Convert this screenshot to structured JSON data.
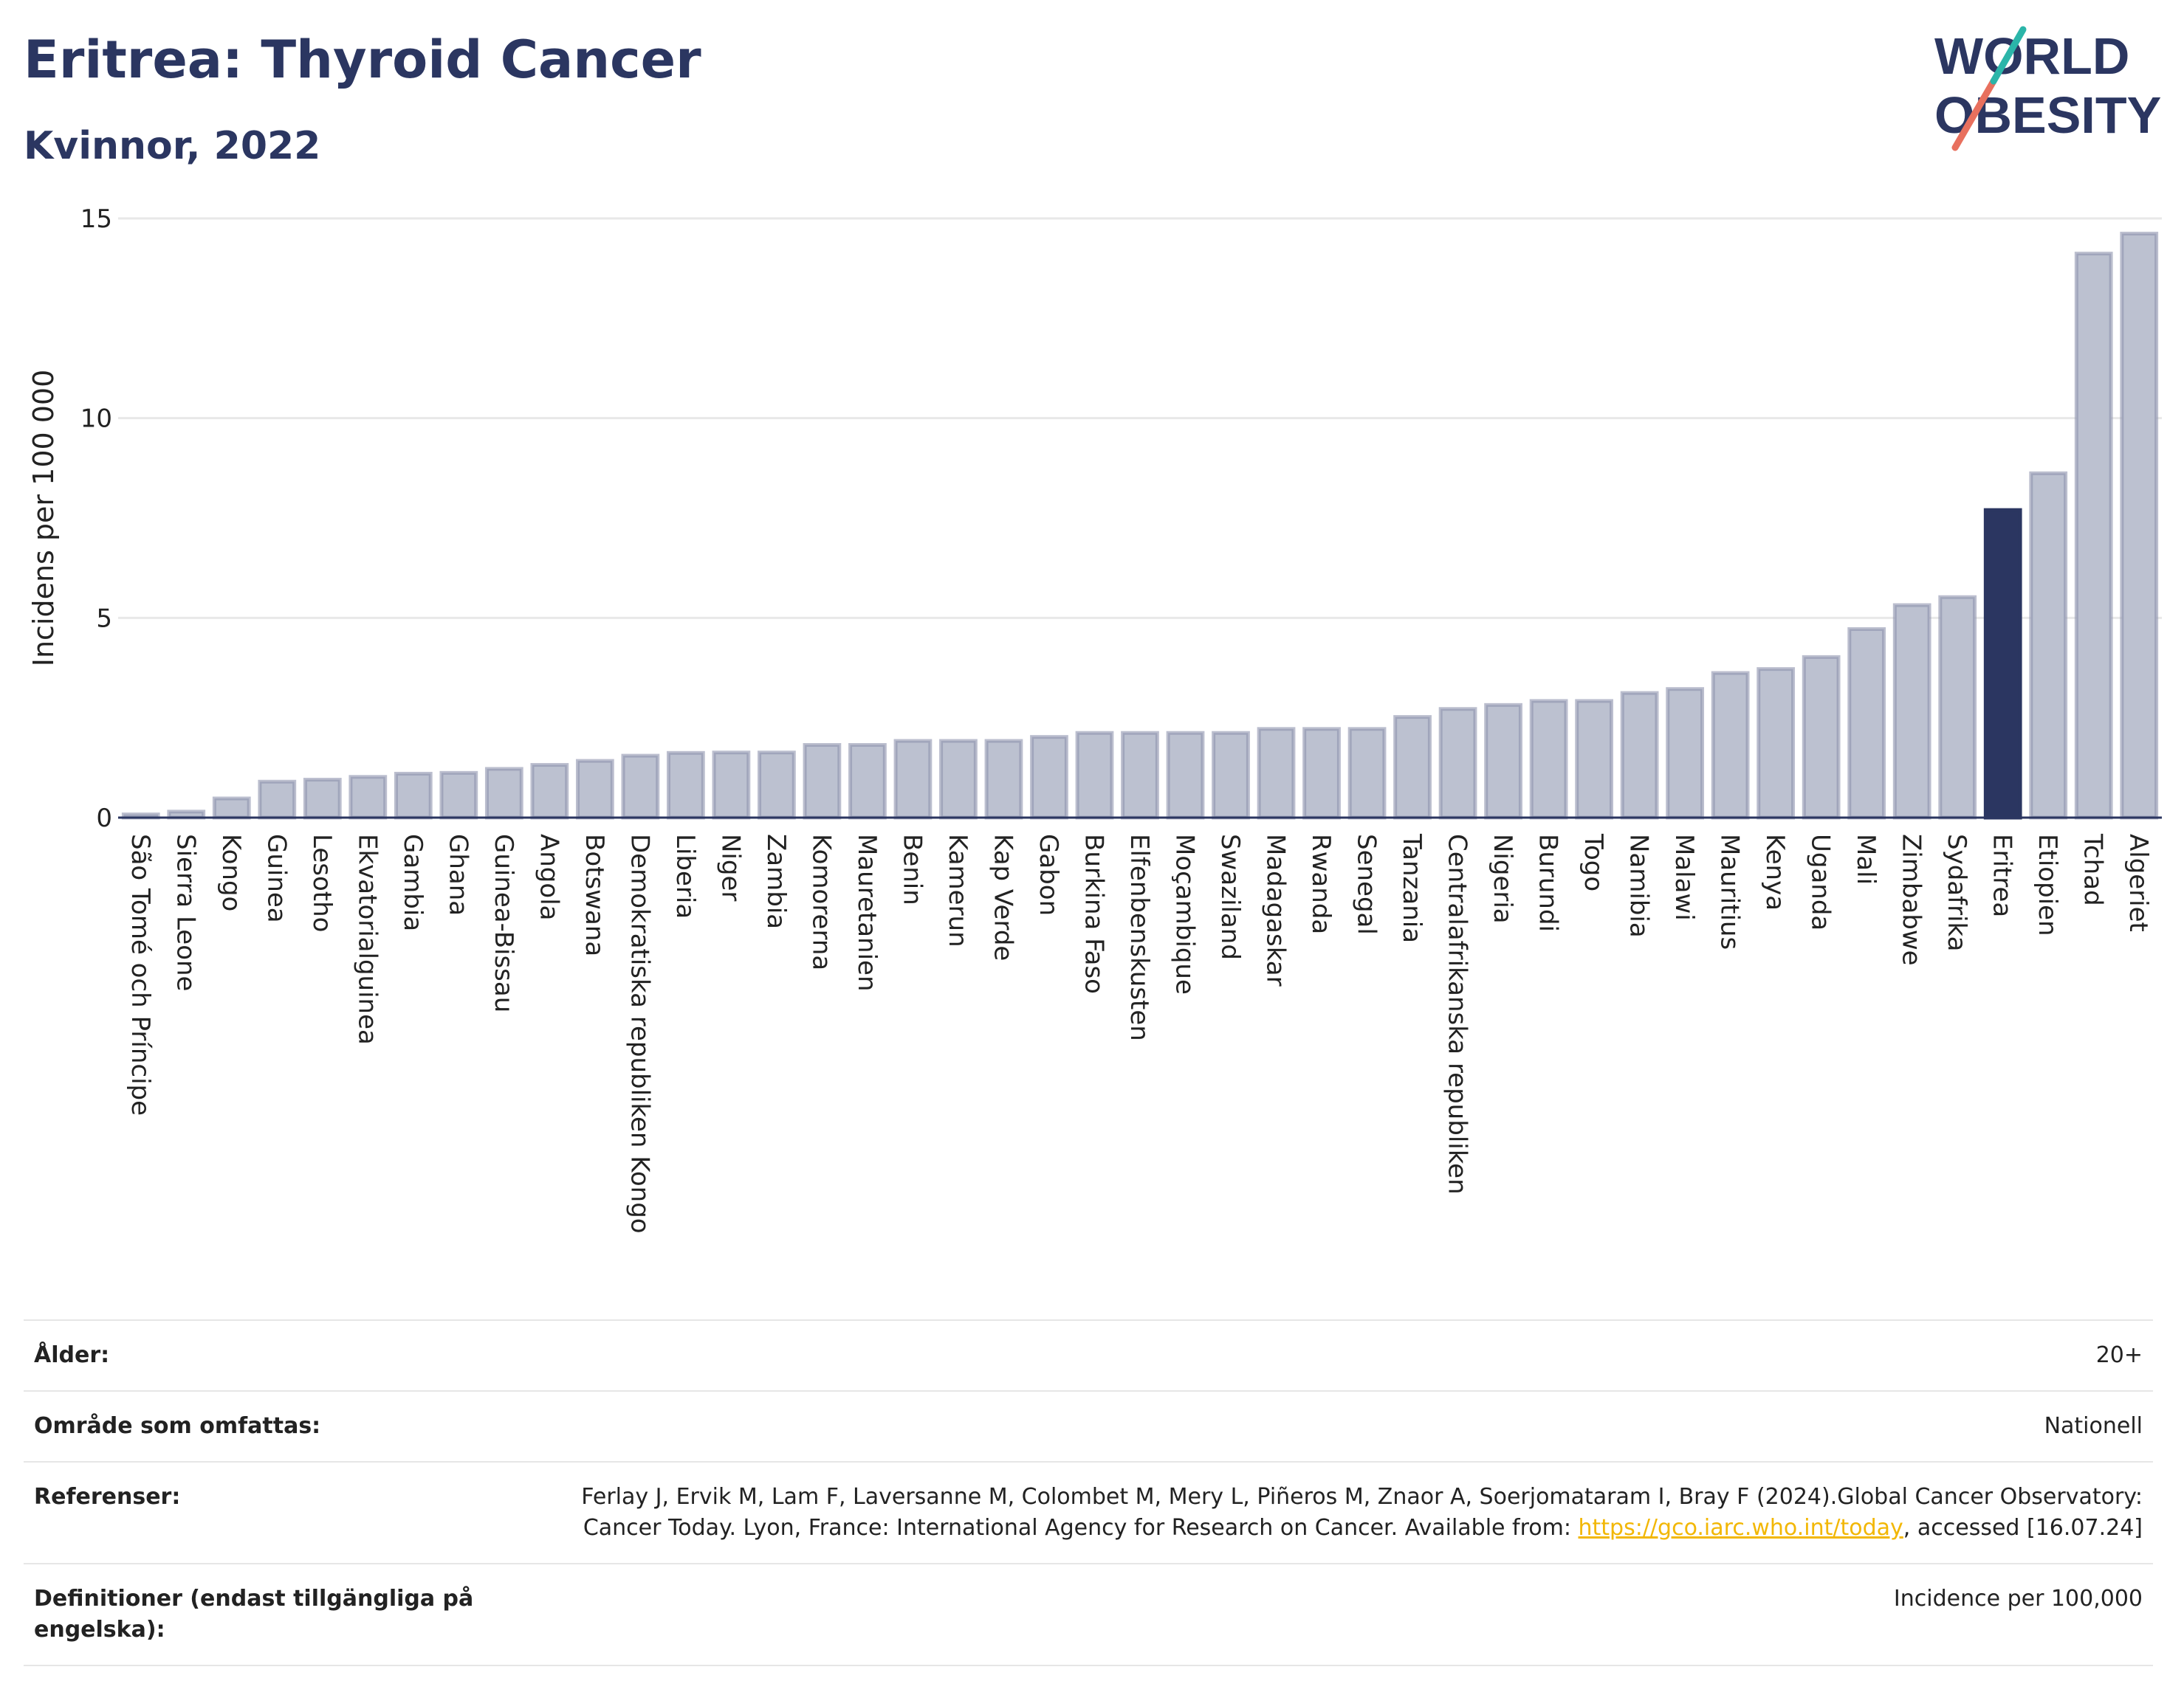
{
  "header": {
    "title": "Eritrea: Thyroid Cancer",
    "subtitle": "Kvinnor, 2022"
  },
  "logo": {
    "line1": "WORLD",
    "line2": "OBESITY",
    "colors": [
      "#2b3661",
      "#2bb5a9",
      "#e8705e"
    ]
  },
  "colors": {
    "bar": "#bcc1d0",
    "bar_stroke": "#8d93ad",
    "highlight": "#2b3661",
    "grid": "#e8e8e8",
    "axis": "#2b3661"
  },
  "chart_data": {
    "type": "bar",
    "ylabel": "Incidens per 100 000",
    "ylim": [
      0,
      15
    ],
    "yticks": [
      "0",
      "5",
      "10",
      "15"
    ],
    "grid": true,
    "highlight": "Eritrea",
    "categories": [
      "São Tomé och Príncipe",
      "Sierra Leone",
      "Kongo",
      "Guinea",
      "Lesotho",
      "Ekvatorialguinea",
      "Gambia",
      "Ghana",
      "Guinea-Bissau",
      "Angola",
      "Botswana",
      "Demokratiska republiken Kongo",
      "Liberia",
      "Niger",
      "Zambia",
      "Komorerna",
      "Mauretanien",
      "Benin",
      "Kamerun",
      "Kap Verde",
      "Gabon",
      "Burkina Faso",
      "Elfenbenskusten",
      "Moçambique",
      "Swaziland",
      "Madagaskar",
      "Rwanda",
      "Senegal",
      "Tanzania",
      "Centralafrikanska republiken",
      "Nigeria",
      "Burundi",
      "Togo",
      "Namibia",
      "Malawi",
      "Mauritius",
      "Kenya",
      "Uganda",
      "Mali",
      "Zimbabwe",
      "Sydafrika",
      "Eritrea",
      "Etiopien",
      "Tchad",
      "Algeriet"
    ],
    "values": [
      0.08,
      0.15,
      0.48,
      0.9,
      0.95,
      1.02,
      1.1,
      1.12,
      1.22,
      1.32,
      1.42,
      1.55,
      1.62,
      1.63,
      1.63,
      1.82,
      1.82,
      1.92,
      1.92,
      1.92,
      2.02,
      2.12,
      2.12,
      2.12,
      2.12,
      2.22,
      2.22,
      2.22,
      2.52,
      2.72,
      2.82,
      2.92,
      2.92,
      3.12,
      3.22,
      3.62,
      3.72,
      4.02,
      4.72,
      5.32,
      5.52,
      7.7,
      8.62,
      14.12,
      14.62
    ]
  },
  "info": {
    "rows": [
      {
        "label": "Ålder:",
        "value": "20+"
      },
      {
        "label": "Område som omfattas:",
        "value": "Nationell"
      },
      {
        "label": "Referenser:",
        "value_a": "Ferlay J, Ervik M, Lam F, Laversanne M, Colombet M, Mery L, Piñeros M, Znaor A, Soerjomataram I, Bray F (2024).Global Cancer Observatory: Cancer Today. Lyon, France: International Agency for Research on Cancer. Available from: ",
        "link": "https://gco.iarc.who.int/today",
        "value_b": ", accessed [16.07.24]"
      },
      {
        "label": "Definitioner (endast tillgängliga på engelska):",
        "value": "Incidence per 100,000"
      }
    ]
  }
}
